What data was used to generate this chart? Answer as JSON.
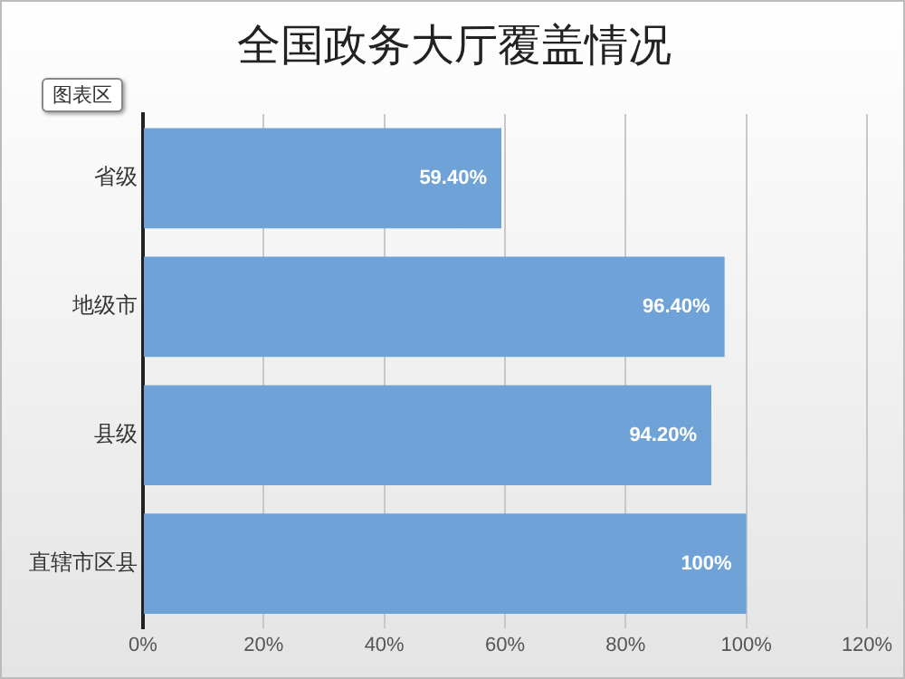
{
  "chart_data": {
    "type": "bar",
    "orientation": "horizontal",
    "title": "全国政务大厅覆盖情况",
    "categories": [
      "省级",
      "地级市",
      "县级",
      "直辖市区县"
    ],
    "values": [
      59.4,
      96.4,
      94.2,
      100
    ],
    "value_labels": [
      "59.40%",
      "96.40%",
      "94.20%",
      "100%"
    ],
    "color": "#6fa3d8",
    "xlim": [
      0,
      120
    ],
    "xticks": [
      {
        "value": 0,
        "label": "0%"
      },
      {
        "value": 20,
        "label": "20%"
      },
      {
        "value": 40,
        "label": "40%"
      },
      {
        "value": 60,
        "label": "60%"
      },
      {
        "value": 80,
        "label": "80%"
      },
      {
        "value": 100,
        "label": "100%"
      },
      {
        "value": 120,
        "label": "120%"
      }
    ],
    "grid": "x",
    "legend": false,
    "annotations": [
      "图表区"
    ]
  }
}
